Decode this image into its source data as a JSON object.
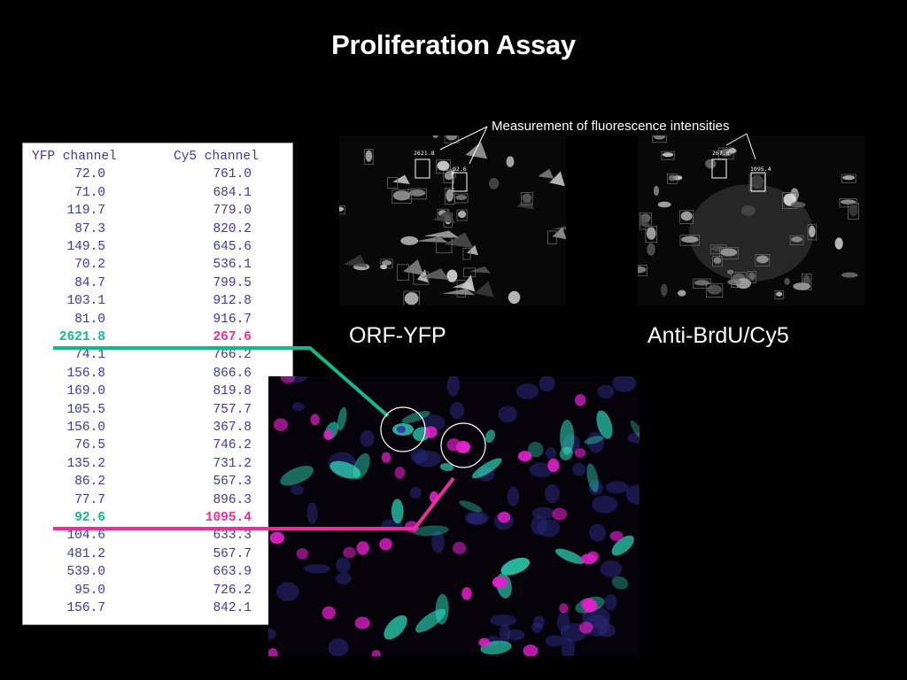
{
  "slide": {
    "title": "Proliferation Assay",
    "annotation": "Measurement of fluorescence intensities",
    "caption_yfp": "ORF-YFP",
    "caption_cy5": "Anti-BrdU/Cy5",
    "yfp_box_labels": [
      "2621.8",
      "92.6"
    ],
    "cy5_box_labels": [
      "267.6",
      "1095.4"
    ]
  },
  "table": {
    "headers": [
      "YFP channel",
      "Cy5 channel"
    ],
    "rows": [
      [
        "72.0",
        "761.0"
      ],
      [
        "71.0",
        "684.1"
      ],
      [
        "119.7",
        "779.0"
      ],
      [
        "87.3",
        "820.2"
      ],
      [
        "149.5",
        "645.6"
      ],
      [
        "70.2",
        "536.1"
      ],
      [
        "84.7",
        "799.5"
      ],
      [
        "103.1",
        "912.8"
      ],
      [
        "81.0",
        "916.7"
      ],
      [
        "2621.8",
        "267.6"
      ],
      [
        "74.1",
        "766.2"
      ],
      [
        "156.8",
        "866.6"
      ],
      [
        "169.0",
        "819.8"
      ],
      [
        "105.5",
        "757.7"
      ],
      [
        "156.0",
        "367.8"
      ],
      [
        "76.5",
        "746.2"
      ],
      [
        "135.2",
        "731.2"
      ],
      [
        "86.2",
        "567.3"
      ],
      [
        "77.7",
        "896.3"
      ],
      [
        "92.6",
        "1095.4"
      ],
      [
        "104.6",
        "633.3"
      ],
      [
        "481.2",
        "567.7"
      ],
      [
        "539.0",
        "663.9"
      ],
      [
        "95.0",
        "726.2"
      ],
      [
        "156.7",
        "842.1"
      ]
    ],
    "highlight_green_row": 9,
    "highlight_pink_row": 19
  },
  "colors": {
    "background": "#000000",
    "green": "#14b88c",
    "pink": "#e8309a",
    "table_text": "#3a3aa0"
  }
}
